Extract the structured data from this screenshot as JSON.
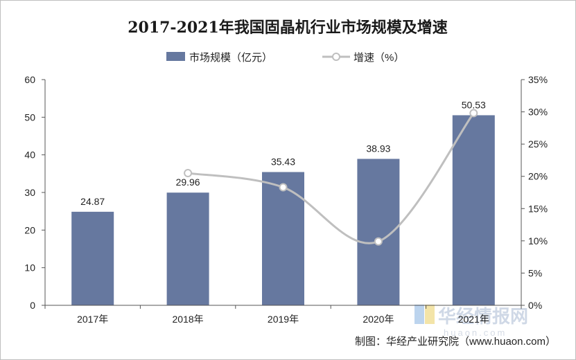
{
  "chart_data": {
    "type": "bar",
    "title": "2017-2021年我国固晶机行业市场规模及增速",
    "categories": [
      "2017年",
      "2018年",
      "2019年",
      "2020年",
      "2021年"
    ],
    "series": [
      {
        "name": "市场规模（亿元）",
        "type": "bar",
        "axis": "left",
        "values": [
          24.87,
          29.96,
          35.43,
          38.93,
          50.53
        ],
        "labels": [
          "24.87",
          "29.96",
          "35.43",
          "38.93",
          "50.53"
        ],
        "color": "#66789f"
      },
      {
        "name": "增速（%）",
        "type": "line",
        "axis": "right",
        "smooth": true,
        "values": [
          null,
          20.5,
          18.3,
          9.9,
          29.8
        ],
        "color": "#bfbfbf"
      }
    ],
    "yleft_ticks": [
      "0",
      "10",
      "20",
      "30",
      "40",
      "50",
      "60"
    ],
    "ylim_left": [
      0,
      60
    ],
    "yright_ticks": [
      "0%",
      "5%",
      "10%",
      "15%",
      "20%",
      "25%",
      "30%",
      "35%"
    ],
    "ylim_right": [
      0,
      35
    ],
    "grid": false,
    "legend_position": "top-center"
  },
  "source_text": "制图：华经产业研究院（www.huaon.com）",
  "watermark": {
    "text": "华经情报网",
    "url": "huaon.com"
  }
}
